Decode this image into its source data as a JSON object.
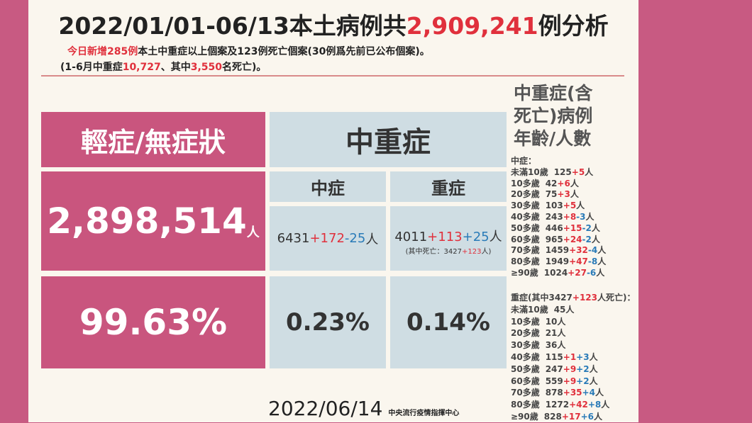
{
  "header": {
    "title": [
      "2022/01/01-06/13本土病例共",
      "2,909,241",
      "例分析"
    ],
    "line1": [
      "今日新增285例",
      "本土中重症以上個案及123例死亡個案(30例爲先前已公布個案)。"
    ],
    "line2": [
      "(1-6月中重症",
      "10,727",
      "、其中",
      "3,550",
      "名死亡)。"
    ]
  },
  "table": {
    "mild": {
      "label": "輕症/無症狀",
      "count": "2,898,514",
      "unit": "人",
      "percent": "99.63%"
    },
    "severe_header": "中重症",
    "moderate": {
      "label": "中症",
      "parts": [
        "6431",
        "+172",
        "-25",
        "人"
      ],
      "percent": "0.23%"
    },
    "severe": {
      "label": "重症",
      "parts": [
        "4011",
        "+113",
        "+25",
        "人"
      ],
      "note": [
        "(其中死亡：3427",
        "+123",
        "人)"
      ],
      "percent": "0.14%"
    }
  },
  "age_panel": {
    "title": [
      "中重症(含",
      "死亡)病例",
      "年齡/人數"
    ],
    "moderate_heading": "中症：",
    "moderate_rows": [
      [
        "未滿10歲",
        "125",
        "+5",
        "人"
      ],
      [
        "10多歲",
        "42",
        "+6",
        "人"
      ],
      [
        "20多歲",
        "75",
        "+3",
        "人"
      ],
      [
        "30多歲",
        "103",
        "+5",
        "人"
      ],
      [
        "40多歲",
        "243",
        "+8",
        "-3",
        "人"
      ],
      [
        "50多歲",
        "446",
        "+15",
        "-2",
        "人"
      ],
      [
        "60多歲",
        "965",
        "+24",
        "-2",
        "人"
      ],
      [
        "70多歲",
        "1459",
        "+32",
        "-4",
        "人"
      ],
      [
        "80多歲",
        "1949",
        "+47",
        "-8",
        "人"
      ],
      [
        "≥90歲",
        "1024",
        "+27",
        "-6",
        "人"
      ]
    ],
    "severe_heading": [
      "重症(其中3427",
      "+123",
      "人死亡)："
    ],
    "severe_rows": [
      [
        "未滿10歲",
        "45人"
      ],
      [
        "10多歲",
        "10人"
      ],
      [
        "20多歲",
        "21人"
      ],
      [
        "30多歲",
        "36人"
      ],
      [
        "40多歲",
        "115",
        "+1",
        "+3",
        "人"
      ],
      [
        "50多歲",
        "247",
        "+9",
        "+2",
        "人"
      ],
      [
        "60多歲",
        "559",
        "+9",
        "+2",
        "人"
      ],
      [
        "70多歲",
        "878",
        "+35",
        "+4",
        "人"
      ],
      [
        "80多歲",
        "1272",
        "+42",
        "+8",
        "人"
      ],
      [
        "≥90歲",
        "828",
        "+17",
        "+6",
        "人"
      ]
    ]
  },
  "footer": {
    "date": "2022/06/14",
    "agency": "中央流行疫情指揮中心"
  }
}
